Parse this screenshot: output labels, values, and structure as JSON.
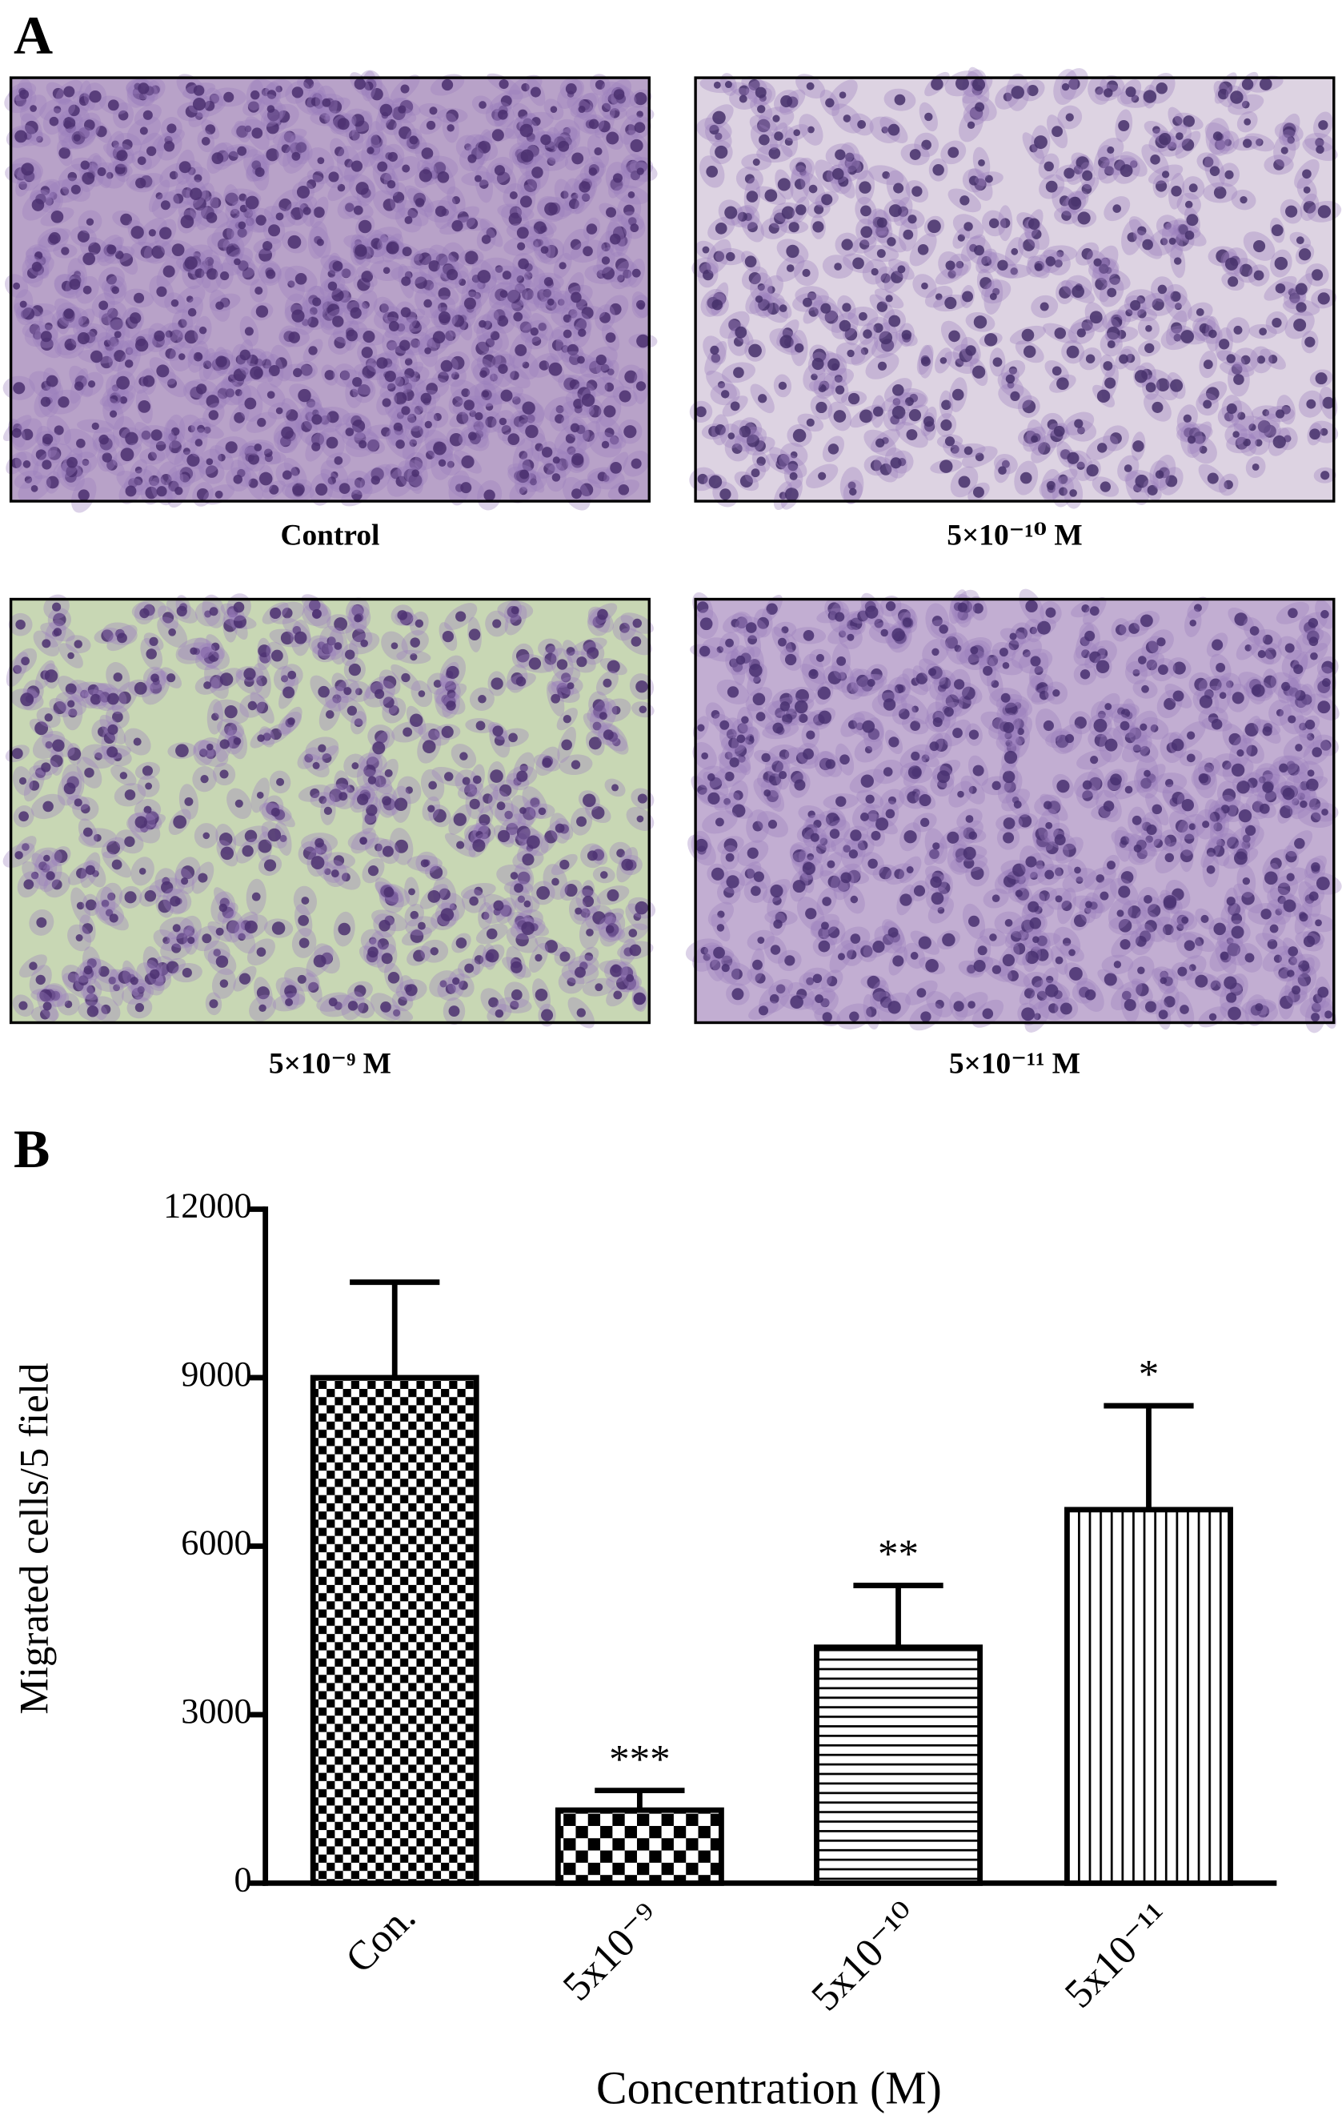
{
  "panels": {
    "a_label": "A",
    "b_label": "B"
  },
  "micrographs": [
    {
      "caption": "Control"
    },
    {
      "caption": "5×10⁻¹⁰ M"
    },
    {
      "caption": "5×10⁻⁹ M"
    },
    {
      "caption": "5×10⁻¹¹ M"
    }
  ],
  "chart_data": {
    "type": "bar",
    "categories": [
      "Con.",
      "5x10⁻⁹",
      "5x10⁻¹⁰",
      "5x10⁻¹¹"
    ],
    "values": [
      9000,
      1300,
      4200,
      6650
    ],
    "errors": [
      1700,
      350,
      1100,
      1850
    ],
    "annotations": [
      null,
      "***",
      "**",
      "*"
    ],
    "patterns": [
      "checker",
      "checker-large",
      "horizontal",
      "vertical"
    ],
    "color": "#000000",
    "ylim": [
      0,
      12000
    ],
    "yticks": [
      0,
      3000,
      6000,
      9000,
      12000
    ],
    "ylabel": "Migrated cells/5 field",
    "xlabel": "Concentration (M)"
  }
}
